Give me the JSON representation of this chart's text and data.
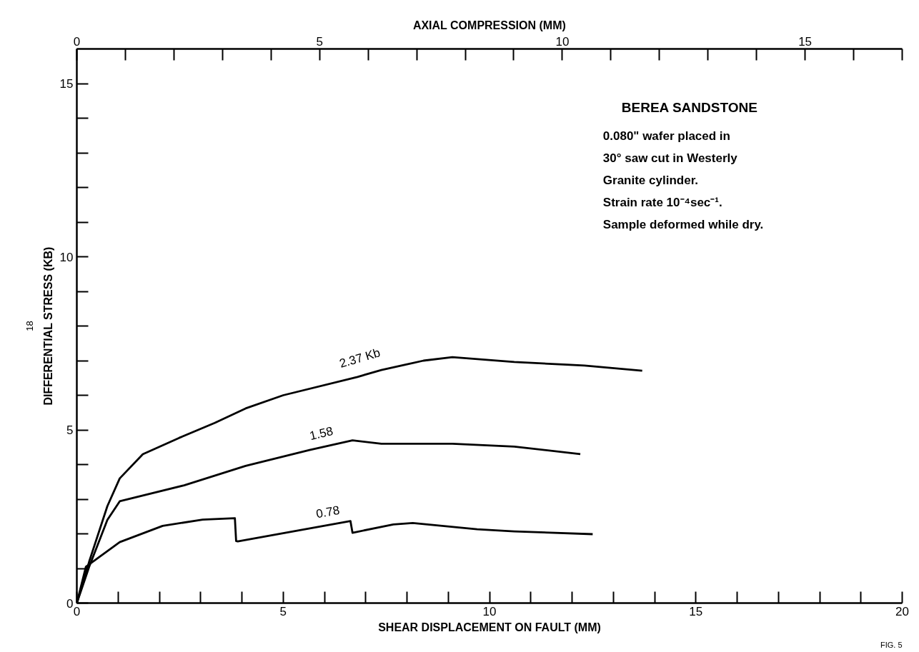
{
  "chart_data": {
    "type": "line",
    "title": "BEREA SANDSTONE",
    "xlabel": "SHEAR DISPLACEMENT ON FAULT (MM)",
    "ylabel": "DIFFERENTIAL STRESS (KB)",
    "x2label": "AXIAL COMPRESSION (MM)",
    "annotations": [
      "0.080\" wafer placed in",
      "30° saw cut in Westerly",
      "Granite cylinder.",
      "Strain rate 10⁻⁴sec⁻¹.",
      "Sample deformed while dry.",
      "18",
      "FIG. 5"
    ],
    "xlim": [
      0,
      20
    ],
    "ylim": [
      0,
      16
    ],
    "x2lim": [
      0,
      17
    ],
    "xticks": [
      0,
      {
        "value": 1,
        "label": null
      },
      {
        "value": 2,
        "label": null
      },
      {
        "value": 3,
        "label": null
      },
      {
        "value": 4,
        "label": null
      },
      5,
      {
        "value": 6,
        "label": null
      },
      {
        "value": 7,
        "label": null
      },
      {
        "value": 8,
        "label": null
      },
      {
        "value": 9,
        "label": null
      },
      10,
      {
        "value": 11,
        "label": null
      },
      {
        "value": 12,
        "label": null
      },
      {
        "value": 13,
        "label": null
      },
      {
        "value": 14,
        "label": null
      },
      15,
      {
        "value": 16,
        "label": null
      },
      {
        "value": 17,
        "label": null
      },
      {
        "value": 18,
        "label": null
      },
      {
        "value": 19,
        "label": null
      },
      20
    ],
    "yticks": [
      0,
      {
        "value": 1,
        "label": null
      },
      {
        "value": 2,
        "label": null
      },
      {
        "value": 3,
        "label": null
      },
      {
        "value": 4,
        "label": null
      },
      5,
      {
        "value": 6,
        "label": null
      },
      {
        "value": 7,
        "label": null
      },
      {
        "value": 8,
        "label": null
      },
      {
        "value": 9,
        "label": null
      },
      10,
      {
        "value": 11,
        "label": null
      },
      {
        "value": 12,
        "label": null
      },
      {
        "value": 13,
        "label": null
      },
      {
        "value": 14,
        "label": null
      },
      15
    ],
    "x2ticks": [
      0,
      {
        "value": 1,
        "label": null
      },
      {
        "value": 2,
        "label": null
      },
      {
        "value": 3,
        "label": null
      },
      {
        "value": 4,
        "label": null
      },
      5,
      {
        "value": 6,
        "label": null
      },
      {
        "value": 7,
        "label": null
      },
      {
        "value": 8,
        "label": null
      },
      {
        "value": 9,
        "label": null
      },
      10,
      {
        "value": 11,
        "label": null
      },
      {
        "value": 12,
        "label": null
      },
      {
        "value": 13,
        "label": null
      },
      {
        "value": 14,
        "label": null
      },
      15,
      {
        "value": 16,
        "label": null
      },
      {
        "value": 17,
        "label": null
      }
    ],
    "grid": false,
    "legend": false,
    "marker": "none",
    "line_style": "solid",
    "series": [
      {
        "name": "2.37 Kb",
        "color": "#000000",
        "x": [
          0,
          0.3,
          0.74,
          1.04,
          1.6,
          2.48,
          3.34,
          4.09,
          5.0,
          6.8,
          7.38,
          8.4,
          9.1,
          10.6,
          12.3,
          13.7
        ],
        "values": [
          0,
          1.2,
          2.8,
          3.6,
          4.3,
          4.77,
          5.2,
          5.62,
          6.0,
          6.53,
          6.73,
          7.0,
          7.1,
          6.96,
          6.86,
          6.71
        ]
      },
      {
        "name": "1.58",
        "color": "#000000",
        "x": [
          0,
          0.3,
          0.74,
          1.04,
          2.6,
          4.09,
          5.64,
          6.68,
          7.38,
          9.1,
          10.6,
          12.2
        ],
        "values": [
          0,
          1.05,
          2.4,
          2.94,
          3.4,
          3.96,
          4.42,
          4.7,
          4.6,
          4.6,
          4.52,
          4.3
        ]
      },
      {
        "name": "0.78",
        "color": "#000000",
        "x": [
          0,
          0.22,
          1.04,
          2.08,
          3.05,
          3.83,
          3.86,
          3.9,
          6.63,
          6.68,
          7.67,
          8.14,
          9.7,
          10.6,
          12.5
        ],
        "values": [
          0,
          1.05,
          1.76,
          2.23,
          2.41,
          2.45,
          1.79,
          1.78,
          2.37,
          2.03,
          2.27,
          2.31,
          2.13,
          2.07,
          1.99
        ]
      }
    ]
  }
}
